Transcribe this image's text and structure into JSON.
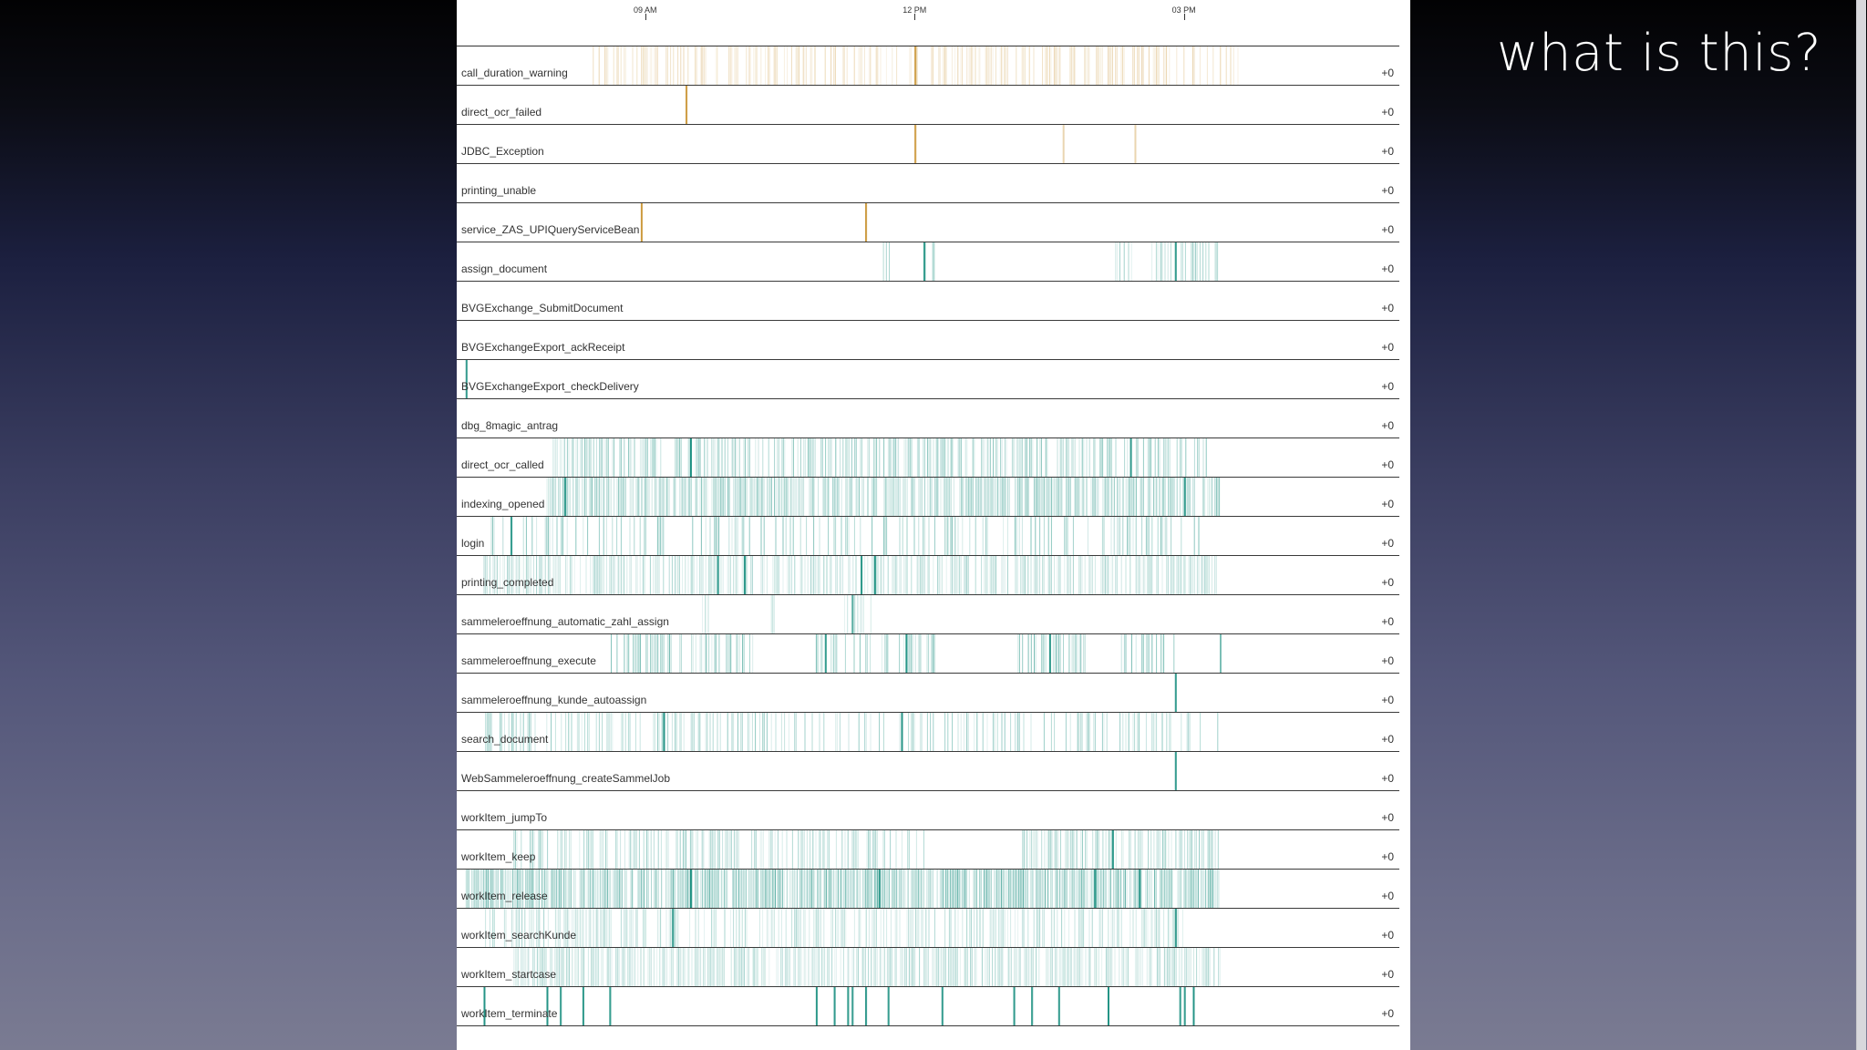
{
  "slide": {
    "question": "what is this?"
  },
  "colors": {
    "warning": "#c8912e",
    "normal": "#1a8f80",
    "background_panel": "#ffffff"
  },
  "chart_data": {
    "type": "heatmap",
    "title": "",
    "xlabel": "",
    "ylabel": "",
    "x_axis": {
      "range_hours": [
        6.9,
        17.4
      ],
      "ticks": [
        {
          "label": "09 AM",
          "hour": 9
        },
        {
          "label": "12 PM",
          "hour": 12
        },
        {
          "label": "03 PM",
          "hour": 15
        }
      ]
    },
    "series": [
      {
        "name": "call_duration_warning",
        "delta": "+0",
        "color": "warning",
        "pattern": "sparse",
        "active": [
          [
            8.4,
            15.6
          ]
        ],
        "density": 0.45,
        "alpha": 0.4,
        "spikes": [
          [
            12.0,
            1
          ]
        ]
      },
      {
        "name": "direct_ocr_failed",
        "delta": "+0",
        "color": "warning",
        "pattern": "spikes",
        "spikes": [
          [
            9.45,
            1
          ]
        ]
      },
      {
        "name": "JDBC_Exception",
        "delta": "+0",
        "color": "warning",
        "pattern": "spikes",
        "spikes": [
          [
            12.0,
            1
          ],
          [
            13.65,
            0.4
          ],
          [
            14.45,
            0.4
          ]
        ]
      },
      {
        "name": "printing_unable",
        "delta": "+0",
        "color": "warning",
        "pattern": "empty"
      },
      {
        "name": "service_ZAS_UPIQueryServiceBean",
        "delta": "+0",
        "color": "warning",
        "pattern": "spikes",
        "spikes": [
          [
            8.95,
            1
          ],
          [
            11.45,
            1
          ]
        ]
      },
      {
        "name": "assign_document",
        "delta": "+0",
        "color": "normal",
        "pattern": "clusters",
        "active": [
          [
            11.6,
            11.75
          ],
          [
            12.1,
            12.3
          ],
          [
            14.2,
            15.4
          ]
        ],
        "density": 0.35,
        "alpha": 0.5,
        "spikes": [
          [
            12.1,
            1
          ],
          [
            14.9,
            1
          ]
        ]
      },
      {
        "name": "BVGExchange_SubmitDocument",
        "delta": "+0",
        "color": "normal",
        "pattern": "empty"
      },
      {
        "name": "BVGExchangeExport_ackReceipt",
        "delta": "+0",
        "color": "normal",
        "pattern": "empty"
      },
      {
        "name": "BVGExchangeExport_checkDelivery",
        "delta": "+0",
        "color": "normal",
        "pattern": "spikes",
        "spikes": [
          [
            7.0,
            1
          ]
        ]
      },
      {
        "name": "dbg_8magic_antrag",
        "delta": "+0",
        "color": "normal",
        "pattern": "empty"
      },
      {
        "name": "direct_ocr_called",
        "delta": "+0",
        "color": "normal",
        "pattern": "dense",
        "active": [
          [
            7.9,
            15.3
          ]
        ],
        "density": 0.55,
        "alpha": 0.55,
        "spikes": [
          [
            9.5,
            1
          ],
          [
            14.4,
            1
          ]
        ]
      },
      {
        "name": "indexing_opened",
        "delta": "+0",
        "color": "normal",
        "pattern": "dense",
        "active": [
          [
            7.9,
            15.4
          ]
        ],
        "density": 0.75,
        "alpha": 0.55,
        "spikes": [
          [
            8.1,
            1
          ],
          [
            15.0,
            1
          ]
        ]
      },
      {
        "name": "login",
        "delta": "+0",
        "color": "normal",
        "pattern": "sparse",
        "active": [
          [
            7.2,
            15.2
          ]
        ],
        "density": 0.3,
        "alpha": 0.55,
        "spikes": [
          [
            7.5,
            1
          ]
        ]
      },
      {
        "name": "printing_completed",
        "delta": "+0",
        "color": "normal",
        "pattern": "dense",
        "active": [
          [
            7.2,
            15.4
          ]
        ],
        "density": 0.6,
        "alpha": 0.4,
        "spikes": [
          [
            9.8,
            1
          ],
          [
            10.1,
            1
          ],
          [
            11.4,
            1
          ],
          [
            11.55,
            1
          ]
        ]
      },
      {
        "name": "sammeleroeffnung_automatic_zahl_assign",
        "delta": "+0",
        "color": "normal",
        "pattern": "clusters",
        "active": [
          [
            11.2,
            11.6
          ],
          [
            9.6,
            9.7
          ],
          [
            10.4,
            10.45
          ]
        ],
        "density": 0.3,
        "alpha": 0.35,
        "spikes": [
          [
            11.3,
            0.8
          ]
        ]
      },
      {
        "name": "sammeleroeffnung_execute",
        "delta": "+0",
        "color": "normal",
        "pattern": "clusters",
        "active": [
          [
            8.6,
            10.2
          ],
          [
            10.9,
            12.3
          ],
          [
            13.1,
            13.9
          ],
          [
            14.3,
            14.9
          ]
        ],
        "density": 0.45,
        "alpha": 0.6,
        "spikes": [
          [
            11.0,
            1
          ],
          [
            11.9,
            1
          ],
          [
            13.5,
            1
          ],
          [
            15.4,
            0.6
          ]
        ]
      },
      {
        "name": "sammeleroeffnung_kunde_autoassign",
        "delta": "+0",
        "color": "normal",
        "pattern": "spikes",
        "spikes": [
          [
            14.9,
            1
          ]
        ]
      },
      {
        "name": "search_document",
        "delta": "+0",
        "color": "normal",
        "pattern": "sparse",
        "active": [
          [
            7.2,
            15.4
          ]
        ],
        "density": 0.35,
        "alpha": 0.5,
        "spikes": [
          [
            9.2,
            1
          ],
          [
            11.85,
            1
          ]
        ]
      },
      {
        "name": "WebSammeleroeffnung_createSammelJob",
        "delta": "+0",
        "color": "normal",
        "pattern": "spikes",
        "spikes": [
          [
            14.9,
            1
          ]
        ]
      },
      {
        "name": "workItem_jumpTo",
        "delta": "+0",
        "color": "normal",
        "pattern": "empty"
      },
      {
        "name": "workItem_keep",
        "delta": "+0",
        "color": "normal",
        "pattern": "clusters",
        "active": [
          [
            7.5,
            12.1
          ],
          [
            13.2,
            15.4
          ]
        ],
        "density": 0.5,
        "alpha": 0.45,
        "spikes": [
          [
            14.2,
            1
          ]
        ]
      },
      {
        "name": "workItem_release",
        "delta": "+0",
        "color": "normal",
        "pattern": "dense",
        "active": [
          [
            7.0,
            15.4
          ]
        ],
        "density": 0.85,
        "alpha": 0.65,
        "spikes": [
          [
            9.5,
            1
          ],
          [
            11.6,
            1
          ],
          [
            14.0,
            1
          ],
          [
            14.5,
            1
          ]
        ]
      },
      {
        "name": "workItem_searchKunde",
        "delta": "+0",
        "color": "normal",
        "pattern": "sparse",
        "active": [
          [
            7.2,
            15.0
          ]
        ],
        "density": 0.45,
        "alpha": 0.4,
        "spikes": [
          [
            9.3,
            1
          ],
          [
            14.9,
            1
          ]
        ]
      },
      {
        "name": "workItem_startcase",
        "delta": "+0",
        "color": "normal",
        "pattern": "dense",
        "active": [
          [
            7.5,
            15.4
          ]
        ],
        "density": 0.7,
        "alpha": 0.4,
        "spikes": []
      },
      {
        "name": "workItem_terminate",
        "delta": "+0",
        "color": "normal",
        "pattern": "lines",
        "spikes": [
          [
            7.2,
            1
          ],
          [
            7.9,
            1
          ],
          [
            8.05,
            1
          ],
          [
            8.3,
            1
          ],
          [
            8.6,
            1
          ],
          [
            10.9,
            1
          ],
          [
            11.1,
            1
          ],
          [
            11.25,
            1
          ],
          [
            11.3,
            1
          ],
          [
            11.45,
            1
          ],
          [
            11.7,
            1
          ],
          [
            12.3,
            1
          ],
          [
            13.1,
            1
          ],
          [
            13.3,
            1
          ],
          [
            13.6,
            1
          ],
          [
            14.15,
            1
          ],
          [
            14.95,
            1
          ],
          [
            15.0,
            1
          ],
          [
            15.1,
            1
          ]
        ]
      }
    ]
  }
}
